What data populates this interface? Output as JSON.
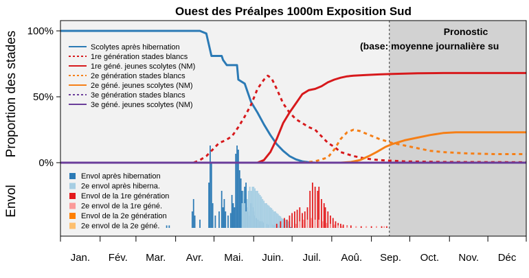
{
  "chart_data": {
    "type": "line",
    "title": "Ouest des Préalpes 1000m Exposition Sud",
    "ylabel_top": "Proportion des stades",
    "ylabel_bottom": "Envol",
    "x_unit": "day of year",
    "xlim": [
      1,
      365
    ],
    "ylim": [
      0,
      100
    ],
    "y_ticks": [
      "0%",
      "50%",
      "100%"
    ],
    "months": [
      "Jan.",
      "Fév.",
      "Mar.",
      "Avr.",
      "Mai.",
      "Juin.",
      "Juil.",
      "Aoû.",
      "Sep.",
      "Oct.",
      "Nov.",
      "Déc"
    ],
    "forecast_start_day": 258,
    "forecast_text_1": "Pronostic",
    "forecast_text_2": "(base: moyenne journalière su",
    "series": [
      {
        "key": "s0",
        "name": "Scolytes après hibernation",
        "color": "#2b7ab5",
        "dash": "solid",
        "points": [
          [
            1,
            100
          ],
          [
            100,
            100
          ],
          [
            101,
            100
          ],
          [
            110,
            100
          ],
          [
            115,
            98
          ],
          [
            119,
            81
          ],
          [
            120,
            81
          ],
          [
            127,
            81
          ],
          [
            128,
            78
          ],
          [
            131,
            74
          ],
          [
            139,
            74
          ],
          [
            140,
            63
          ],
          [
            145,
            60
          ],
          [
            150,
            46
          ],
          [
            155,
            38
          ],
          [
            160,
            29
          ],
          [
            165,
            21
          ],
          [
            170,
            14
          ],
          [
            175,
            9
          ],
          [
            180,
            5
          ],
          [
            185,
            2.5
          ],
          [
            190,
            1
          ],
          [
            195,
            0.3
          ],
          [
            200,
            0
          ]
        ]
      },
      {
        "key": "s1",
        "name": "1re génération stades blancs",
        "color": "#d7191c",
        "dash": "dotted",
        "points": [
          [
            100,
            0
          ],
          [
            105,
            0
          ],
          [
            110,
            2
          ],
          [
            115,
            5
          ],
          [
            120,
            10
          ],
          [
            125,
            15
          ],
          [
            130,
            17
          ],
          [
            135,
            20
          ],
          [
            140,
            27
          ],
          [
            145,
            35
          ],
          [
            150,
            44
          ],
          [
            155,
            56
          ],
          [
            160,
            63
          ],
          [
            163,
            66
          ],
          [
            166,
            64
          ],
          [
            170,
            56
          ],
          [
            175,
            45
          ],
          [
            180,
            38
          ],
          [
            185,
            33
          ],
          [
            190,
            30
          ],
          [
            195,
            27
          ],
          [
            200,
            25
          ],
          [
            205,
            20
          ],
          [
            210,
            15
          ],
          [
            215,
            12
          ],
          [
            220,
            8
          ],
          [
            230,
            5
          ],
          [
            240,
            3
          ],
          [
            250,
            2
          ],
          [
            270,
            1
          ],
          [
            300,
            0.5
          ],
          [
            365,
            0.3
          ]
        ]
      },
      {
        "key": "s2",
        "name": "1re géné. jeunes scolytes (NM)",
        "color": "#d7191c",
        "dash": "solid",
        "points": [
          [
            155,
            0
          ],
          [
            160,
            2
          ],
          [
            165,
            8
          ],
          [
            170,
            18
          ],
          [
            175,
            30
          ],
          [
            180,
            38
          ],
          [
            185,
            45
          ],
          [
            190,
            52
          ],
          [
            195,
            55
          ],
          [
            200,
            56
          ],
          [
            205,
            58
          ],
          [
            210,
            61
          ],
          [
            215,
            63
          ],
          [
            220,
            64.5
          ],
          [
            225,
            65.5
          ],
          [
            230,
            66
          ],
          [
            240,
            66.5
          ],
          [
            250,
            67
          ],
          [
            260,
            67.3
          ],
          [
            280,
            67.8
          ],
          [
            300,
            68
          ],
          [
            365,
            68
          ]
        ]
      },
      {
        "key": "s3",
        "name": "2e génération stades blancs",
        "color": "#f57f17",
        "dash": "dotted",
        "points": [
          [
            190,
            0
          ],
          [
            200,
            1
          ],
          [
            210,
            4
          ],
          [
            215,
            10
          ],
          [
            220,
            18
          ],
          [
            225,
            23
          ],
          [
            230,
            25
          ],
          [
            235,
            24
          ],
          [
            240,
            22
          ],
          [
            250,
            18
          ],
          [
            260,
            15
          ],
          [
            270,
            13
          ],
          [
            280,
            11
          ],
          [
            290,
            9
          ],
          [
            300,
            8
          ],
          [
            320,
            7
          ],
          [
            340,
            6.5
          ],
          [
            365,
            6.5
          ]
        ]
      },
      {
        "key": "s4",
        "name": "2e géné. jeunes scolytes (NM)",
        "color": "#f57f17",
        "dash": "solid",
        "points": [
          [
            220,
            0
          ],
          [
            228,
            0.5
          ],
          [
            235,
            2
          ],
          [
            242,
            5
          ],
          [
            248,
            8
          ],
          [
            255,
            12
          ],
          [
            260,
            14
          ],
          [
            270,
            17
          ],
          [
            280,
            19
          ],
          [
            290,
            21
          ],
          [
            300,
            22.5
          ],
          [
            310,
            23
          ],
          [
            330,
            23
          ],
          [
            365,
            23
          ]
        ]
      },
      {
        "key": "s5",
        "name": "3e génération stades blancs",
        "color": "#6a3d9a",
        "dash": "dotted",
        "points": [
          [
            1,
            0
          ],
          [
            365,
            0
          ]
        ]
      },
      {
        "key": "s6",
        "name": "3e géné. jeunes scolytes (NM)",
        "color": "#6a3d9a",
        "dash": "solid",
        "points": [
          [
            1,
            0
          ],
          [
            365,
            0
          ]
        ]
      }
    ],
    "legend_lines": [
      {
        "text": "Scolytes après hibernation"
      },
      {
        "text": "1re génération stades blancs"
      },
      {
        "text": "1re géné. jeunes scolytes (NM)"
      },
      {
        "text": "2e génération stades blancs"
      },
      {
        "text": "2e géné. jeunes scolytes (NM)"
      },
      {
        "text": "3e génération stades blancs"
      },
      {
        "text": "3e géné. jeunes scolytes (NM)"
      }
    ],
    "bar_series": [
      {
        "key": "b0",
        "name": "Envol après hibernation",
        "color": "#2b7ab5"
      },
      {
        "key": "b1",
        "name": "2e envol après hiberna.",
        "color": "#a6cee3"
      },
      {
        "key": "b2",
        "name": "Envol de la 1re génération",
        "color": "#e31a1c"
      },
      {
        "key": "b3",
        "name": "2e envol de la 1re géné.",
        "color": "#fb9a99"
      },
      {
        "key": "b4",
        "name": "Envol de la 2e génération",
        "color": "#ff7f00"
      },
      {
        "key": "b5",
        "name": "2e envol de la 2e géné.",
        "color": "#fdbf6f"
      }
    ],
    "bars_envol": [
      [
        84,
        0,
        0.03
      ],
      [
        86,
        0,
        0.03
      ],
      [
        104,
        0,
        0.2
      ],
      [
        105,
        0,
        0.35
      ],
      [
        106,
        0,
        0.15
      ],
      [
        110,
        0,
        0.1
      ],
      [
        117,
        0,
        0.55
      ],
      [
        118,
        0,
        1.0
      ],
      [
        119,
        0,
        0.8
      ],
      [
        120,
        0,
        0.3
      ],
      [
        122,
        0,
        0.15
      ],
      [
        125,
        0,
        0.2
      ],
      [
        127,
        0,
        0.45
      ],
      [
        128,
        0,
        0.25
      ],
      [
        129,
        0,
        0.35
      ],
      [
        130,
        0,
        0.2
      ],
      [
        132,
        0,
        0.15
      ],
      [
        134,
        0,
        0.18
      ],
      [
        135,
        0,
        0.4
      ],
      [
        136,
        0,
        0.3
      ],
      [
        137,
        0,
        0.25
      ],
      [
        138,
        0,
        0.9
      ],
      [
        139,
        0,
        1.0
      ],
      [
        140,
        0,
        0.95
      ],
      [
        141,
        0,
        0.7
      ],
      [
        142,
        0,
        0.6
      ],
      [
        143,
        0,
        0.45
      ],
      [
        144,
        0,
        0.35
      ],
      [
        145,
        0,
        0.5
      ],
      [
        146,
        0,
        0.55
      ],
      [
        147,
        0,
        0.25
      ],
      [
        148,
        0,
        0.2
      ],
      [
        149,
        0,
        0.15
      ],
      [
        150,
        0,
        0.3
      ],
      [
        151,
        0,
        0.25
      ],
      [
        152,
        0,
        0.2
      ],
      [
        153,
        0,
        0.15
      ],
      [
        154,
        0,
        0.12
      ],
      [
        155,
        0,
        0.1
      ],
      [
        156,
        0,
        0.1
      ],
      [
        157,
        0,
        0.08
      ],
      [
        158,
        0,
        0.08
      ],
      [
        159,
        0,
        0.07
      ],
      [
        160,
        0,
        0.06
      ],
      [
        162,
        0,
        0.05
      ],
      [
        164,
        0,
        0.04
      ],
      [
        166,
        0,
        0.04
      ],
      [
        168,
        0,
        0.03
      ],
      [
        170,
        0,
        0.03
      ],
      [
        172,
        0,
        0.02
      ],
      [
        175,
        0,
        0.02
      ],
      [
        178,
        0,
        0.02
      ],
      [
        181,
        0,
        0.01
      ],
      [
        143,
        1,
        0.3
      ],
      [
        144,
        1,
        0.45
      ],
      [
        145,
        1,
        0.3
      ],
      [
        146,
        1,
        0.2
      ],
      [
        147,
        1,
        0.35
      ],
      [
        148,
        1,
        0.45
      ],
      [
        149,
        1,
        0.5
      ],
      [
        150,
        1,
        0.45
      ],
      [
        151,
        1,
        0.5
      ],
      [
        152,
        1,
        0.5
      ],
      [
        153,
        1,
        0.48
      ],
      [
        154,
        1,
        0.45
      ],
      [
        155,
        1,
        0.45
      ],
      [
        156,
        1,
        0.42
      ],
      [
        157,
        1,
        0.4
      ],
      [
        158,
        1,
        0.38
      ],
      [
        159,
        1,
        0.35
      ],
      [
        160,
        1,
        0.33
      ],
      [
        161,
        1,
        0.3
      ],
      [
        162,
        1,
        0.3
      ],
      [
        163,
        1,
        0.28
      ],
      [
        164,
        1,
        0.27
      ],
      [
        165,
        1,
        0.25
      ],
      [
        166,
        1,
        0.24
      ],
      [
        167,
        1,
        0.22
      ],
      [
        168,
        1,
        0.2
      ],
      [
        169,
        1,
        0.2
      ],
      [
        170,
        1,
        0.18
      ],
      [
        171,
        1,
        0.17
      ],
      [
        172,
        1,
        0.15
      ],
      [
        173,
        1,
        0.14
      ],
      [
        174,
        1,
        0.12
      ],
      [
        175,
        1,
        0.11
      ],
      [
        176,
        1,
        0.1
      ],
      [
        177,
        1,
        0.1
      ],
      [
        178,
        1,
        0.09
      ],
      [
        179,
        1,
        0.08
      ],
      [
        180,
        1,
        0.08
      ],
      [
        182,
        1,
        0.07
      ],
      [
        184,
        1,
        0.06
      ],
      [
        186,
        1,
        0.05
      ],
      [
        188,
        1,
        0.05
      ],
      [
        190,
        1,
        0.04
      ],
      [
        192,
        1,
        0.03
      ],
      [
        194,
        1,
        0.03
      ],
      [
        196,
        1,
        0.02
      ],
      [
        198,
        1,
        0.02
      ],
      [
        200,
        1,
        0.02
      ],
      [
        170,
        2,
        0.05
      ],
      [
        173,
        2,
        0.08
      ],
      [
        176,
        2,
        0.12
      ],
      [
        178,
        2,
        0.1
      ],
      [
        180,
        2,
        0.15
      ],
      [
        182,
        2,
        0.18
      ],
      [
        184,
        2,
        0.2
      ],
      [
        186,
        2,
        0.22
      ],
      [
        188,
        2,
        0.25
      ],
      [
        190,
        2,
        0.18
      ],
      [
        192,
        2,
        0.2
      ],
      [
        194,
        2,
        0.25
      ],
      [
        196,
        2,
        0.45
      ],
      [
        198,
        2,
        0.55
      ],
      [
        200,
        2,
        0.5
      ],
      [
        202,
        2,
        0.45
      ],
      [
        203,
        2,
        0.5
      ],
      [
        205,
        2,
        0.35
      ],
      [
        207,
        2,
        0.3
      ],
      [
        208,
        2,
        0.25
      ],
      [
        210,
        2,
        0.2
      ],
      [
        212,
        2,
        0.15
      ],
      [
        214,
        2,
        0.12
      ],
      [
        216,
        2,
        0.08
      ],
      [
        218,
        2,
        0.06
      ],
      [
        220,
        2,
        0.05
      ],
      [
        222,
        2,
        0.04
      ],
      [
        225,
        2,
        0.03
      ],
      [
        228,
        2,
        0.03
      ],
      [
        232,
        2,
        0.02
      ],
      [
        236,
        2,
        0.02
      ],
      [
        240,
        2,
        0.02
      ],
      [
        244,
        2,
        0.02
      ],
      [
        248,
        2,
        0.02
      ],
      [
        252,
        2,
        0.02
      ],
      [
        256,
        2,
        0.02
      ],
      [
        185,
        3,
        0.05
      ],
      [
        188,
        3,
        0.08
      ],
      [
        191,
        3,
        0.1
      ],
      [
        194,
        3,
        0.1
      ],
      [
        197,
        3,
        0.12
      ],
      [
        200,
        3,
        0.1
      ],
      [
        203,
        3,
        0.1
      ],
      [
        206,
        3,
        0.08
      ],
      [
        209,
        3,
        0.06
      ],
      [
        212,
        3,
        0.05
      ],
      [
        215,
        3,
        0.04
      ],
      [
        218,
        3,
        0.03
      ],
      [
        221,
        3,
        0.02
      ],
      [
        225,
        3,
        0.02
      ],
      [
        232,
        3,
        0.02
      ],
      [
        240,
        3,
        0.02
      ],
      [
        248,
        3,
        0.02
      ],
      [
        254,
        3,
        0.02
      ]
    ]
  }
}
